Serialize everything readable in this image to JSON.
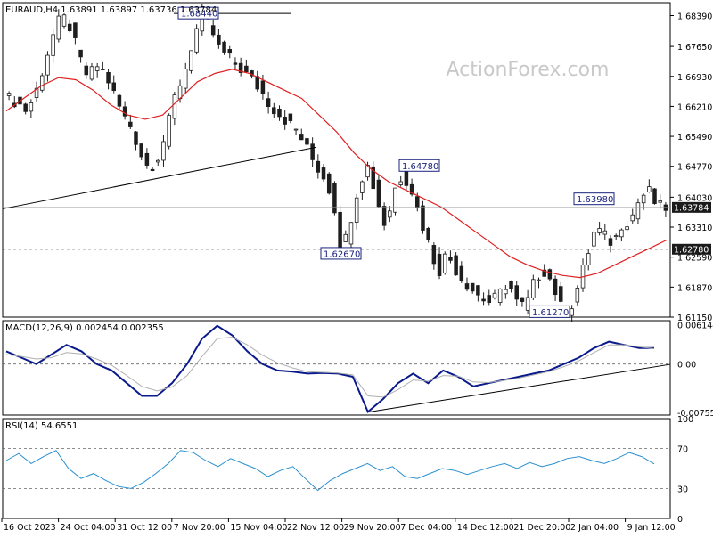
{
  "watermark": "ActionForex.com",
  "colors": {
    "candles": "#1e1e1e",
    "ma": "#e02020",
    "macd": "#0a1a8c",
    "signal": "#b0b0b0",
    "rsi": "#2a8fd0",
    "frame": "#000000",
    "grid_dash": "#666666"
  },
  "chart_data": [
    {
      "type": "candlestick",
      "title": "EURAUD,H4 1.63891 1.63897 1.63736 1.63784",
      "ylim": [
        1.6115,
        1.687
      ],
      "yticks": [
        "1.68390",
        "1.67650",
        "1.66930",
        "1.66210",
        "1.65490",
        "1.64770",
        "1.64030",
        "1.63310",
        "1.62590",
        "1.61870",
        "1.61150"
      ],
      "ytick_values": [
        1.6839,
        1.6765,
        1.6693,
        1.6621,
        1.6549,
        1.6477,
        1.6403,
        1.6331,
        1.6259,
        1.6187,
        1.6115
      ],
      "current_price_label": "1.63784",
      "current_price": 1.63784,
      "level_label": "1.62780",
      "level": 1.6278,
      "price_labels": [
        "1.68440",
        "1.64780",
        "1.62670",
        "1.63980",
        "1.61270"
      ],
      "price_label_values": [
        1.6844,
        1.6478,
        1.6267,
        1.6398,
        1.6127
      ],
      "xlabels": [
        "16 Oct 2023",
        "24 Oct 04:00",
        "31 Oct 12:00",
        "7 Nov 20:00",
        "15 Nov 04:00",
        "22 Nov 12:00",
        "29 Nov 20:00",
        "7 Dec 04:00",
        "14 Dec 12:00",
        "21 Dec 20:00",
        "2 Jan 04:00",
        "9 Jan 12:00"
      ],
      "bars": 120,
      "close_path": [
        1.664,
        1.663,
        1.661,
        1.665,
        1.672,
        1.679,
        1.684,
        1.681,
        1.674,
        1.669,
        1.672,
        1.67,
        1.665,
        1.66,
        1.657,
        1.651,
        1.647,
        1.65,
        1.656,
        1.665,
        1.67,
        1.678,
        1.684,
        1.681,
        1.676,
        1.674,
        1.672,
        1.67,
        1.668,
        1.665,
        1.662,
        1.66,
        1.658,
        1.656,
        1.652,
        1.648,
        1.645,
        1.64,
        1.6267,
        1.635,
        1.644,
        1.6478,
        1.64,
        1.633,
        1.642,
        1.646,
        1.642,
        1.635,
        1.629,
        1.622,
        1.627,
        1.623,
        1.62,
        1.618,
        1.616,
        1.615,
        1.617,
        1.62,
        1.615,
        1.614,
        1.62,
        1.623,
        1.62,
        1.614,
        1.6127,
        1.619,
        1.626,
        1.633,
        1.631,
        1.629,
        1.634,
        1.635,
        1.6398,
        1.642,
        1.638,
        1.6378
      ],
      "ma_path": [
        1.661,
        1.664,
        1.667,
        1.669,
        1.6685,
        1.666,
        1.6625,
        1.66,
        1.659,
        1.66,
        1.664,
        1.668,
        1.67,
        1.671,
        1.67,
        1.668,
        1.666,
        1.664,
        1.66,
        1.656,
        1.651,
        1.647,
        1.644,
        1.642,
        1.64,
        1.638,
        1.635,
        1.632,
        1.629,
        1.626,
        1.624,
        1.6225,
        1.6215,
        1.621,
        1.622,
        1.624,
        1.626,
        1.628,
        1.63
      ]
    },
    {
      "type": "line",
      "title": "MACD(12,26,9) 0.002454 0.002355",
      "ylim": [
        -0.008,
        0.0068
      ],
      "yticks": [
        "0.006144",
        "0.00",
        "-0.007555"
      ],
      "ytick_values": [
        0.006144,
        0.0,
        -0.007555
      ],
      "series": [
        {
          "values": [
            0.002,
            0.001,
            0.0,
            0.0015,
            0.003,
            0.002,
            0.0,
            -0.001,
            -0.003,
            -0.005,
            -0.005,
            -0.003,
            0.0,
            0.004,
            0.006,
            0.0045,
            0.002,
            0.0,
            -0.001,
            -0.0012,
            -0.0015,
            -0.0014,
            -0.0015,
            -0.002,
            -0.0075,
            -0.0055,
            -0.003,
            -0.0015,
            -0.003,
            -0.001,
            -0.002,
            -0.0035,
            -0.003,
            -0.0025,
            -0.002,
            -0.0015,
            -0.001,
            0.0,
            0.001,
            0.0025,
            0.0035,
            0.003,
            0.0025,
            0.0025
          ]
        },
        {
          "values": [
            0.0015,
            0.0012,
            0.0008,
            0.001,
            0.0018,
            0.0016,
            0.0008,
            -0.0002,
            -0.0018,
            -0.0035,
            -0.0042,
            -0.0036,
            -0.0018,
            0.0012,
            0.004,
            0.0042,
            0.003,
            0.0014,
            0.0002,
            -0.0006,
            -0.0012,
            -0.0013,
            -0.0014,
            -0.0017,
            -0.005,
            -0.0052,
            -0.004,
            -0.0025,
            -0.0027,
            -0.0018,
            -0.0019,
            -0.0028,
            -0.0029,
            -0.0026,
            -0.0022,
            -0.0017,
            -0.0012,
            -0.0004,
            0.0005,
            0.0018,
            0.003,
            0.003,
            0.0027,
            0.0024
          ]
        }
      ],
      "trendline": true
    },
    {
      "type": "line",
      "title": "RSI(14) 54.6551",
      "ylim": [
        0,
        100
      ],
      "yticks": [
        "100",
        "70",
        "30",
        "0"
      ],
      "ytick_values": [
        100,
        70,
        30,
        0
      ],
      "series": [
        {
          "values": [
            58,
            65,
            55,
            62,
            68,
            50,
            40,
            45,
            38,
            32,
            30,
            36,
            45,
            55,
            68,
            66,
            58,
            52,
            60,
            55,
            50,
            42,
            48,
            52,
            40,
            28,
            38,
            45,
            50,
            55,
            48,
            52,
            42,
            40,
            45,
            50,
            48,
            44,
            48,
            52,
            55,
            50,
            56,
            52,
            55,
            60,
            62,
            58,
            55,
            60,
            66,
            62,
            54.66
          ]
        }
      ]
    }
  ]
}
